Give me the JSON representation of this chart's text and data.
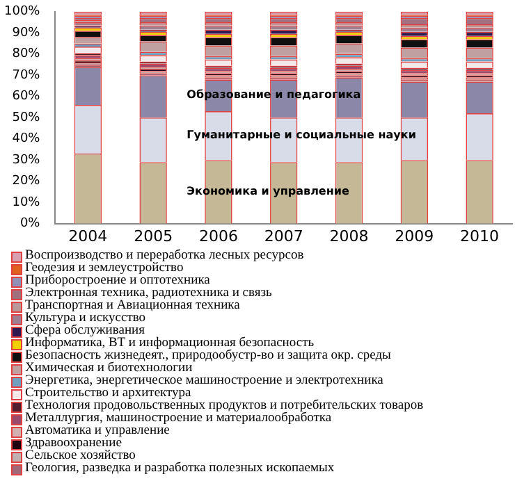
{
  "chart_data": {
    "type": "bar",
    "stacked": true,
    "categories": [
      "2004",
      "2005",
      "2006",
      "2007",
      "2008",
      "2009",
      "2010"
    ],
    "ylim": [
      0,
      100
    ],
    "yticks": [
      {
        "value": 0,
        "label": "0%"
      },
      {
        "value": 10,
        "label": "10%"
      },
      {
        "value": 20,
        "label": "20%"
      },
      {
        "value": 30,
        "label": "30%"
      },
      {
        "value": 40,
        "label": "40%"
      },
      {
        "value": 50,
        "label": "50%"
      },
      {
        "value": 60,
        "label": "60%"
      },
      {
        "value": 70,
        "label": "70%"
      },
      {
        "value": 80,
        "label": "80%"
      },
      {
        "value": 90,
        "label": "90%"
      },
      {
        "value": 100,
        "label": "100%"
      }
    ],
    "grid": false,
    "legend": "bottom",
    "annotations": [
      "Экономика и управление",
      "Гуманитарные и социальные науки",
      "Образование и педагогика"
    ],
    "series": [
      {
        "color": "#c4b896",
        "values": [
          33,
          29,
          30,
          29,
          29,
          30,
          30
        ]
      },
      {
        "color": "#d8dce8",
        "values": [
          23,
          21,
          23,
          21,
          21,
          20,
          22
        ]
      },
      {
        "color": "#8a87a8",
        "values": [
          18,
          20,
          15,
          18,
          19,
          17,
          15
        ]
      },
      {
        "name": "Геология, разведка и разработка полезных ископаемых",
        "color": "#a06878",
        "values": [
          1,
          1,
          1,
          1,
          1,
          1,
          1
        ]
      },
      {
        "name": "Сельское хозяйство",
        "color": "#c0b0b0",
        "values": [
          1,
          1,
          1,
          1,
          1,
          1,
          1
        ]
      },
      {
        "name": "Здравоохранение",
        "color": "#200010",
        "values": [
          1,
          1,
          1,
          1,
          1,
          1,
          1
        ]
      },
      {
        "name": "Автоматика и управление",
        "color": "#d0b0b0",
        "values": [
          1,
          1,
          1,
          1,
          1,
          1,
          1
        ]
      },
      {
        "name": "Металлургия, машиностроение и материалообработка",
        "color": "#9a4a6a",
        "values": [
          1.5,
          1.5,
          1.5,
          1.5,
          1.5,
          1.5,
          1.5
        ]
      },
      {
        "name": "Технология продовольственных продуктов и потребительских товаров",
        "color": "#502030",
        "values": [
          1,
          1,
          1,
          1,
          1,
          1,
          1
        ]
      },
      {
        "name": "Строительство и архитектура",
        "color": "#f2eaea",
        "values": [
          3,
          3,
          3,
          3,
          3,
          3,
          3
        ]
      },
      {
        "name": "Энергетика, энергетическое машиностроение и электротехника",
        "color": "#70a0c0",
        "values": [
          1.5,
          1.5,
          1.5,
          1.5,
          1.5,
          1.5,
          1.5
        ]
      },
      {
        "name": "Химическая и биотехнологии",
        "color": "#c0a0a0",
        "values": [
          3,
          5,
          5,
          5,
          5,
          5,
          5
        ]
      },
      {
        "name": "Безопасность жизнедеят., природообустр-во и защита окр. среды",
        "color": "#101010",
        "values": [
          3,
          3,
          4,
          4,
          4,
          4,
          4
        ]
      },
      {
        "name": "Информатика, ВТ и информационная безопасность",
        "color": "#f0d000",
        "values": [
          1.5,
          1.5,
          1.5,
          1.5,
          1.5,
          1.5,
          1.5
        ]
      },
      {
        "name": "Сфера обслуживания",
        "color": "#301850",
        "values": [
          1,
          1,
          2,
          2,
          1,
          2,
          2
        ]
      },
      {
        "name": "Культура  и искусство",
        "color": "#a08090",
        "values": [
          1.5,
          2,
          2,
          2,
          2,
          2,
          2
        ]
      },
      {
        "name": "Транспортная и Авиационная техника",
        "color": "#b89898",
        "values": [
          1,
          1.5,
          1.5,
          1.5,
          1.5,
          1.5,
          1.5
        ]
      },
      {
        "name": "Электронная техника, радиотехника и связь",
        "color": "#a07080",
        "values": [
          1,
          2,
          2,
          2,
          2,
          3,
          3
        ]
      },
      {
        "name": "Приборостроение и оптотехника",
        "color": "#9090b8",
        "values": [
          1,
          1,
          1,
          1,
          1,
          1,
          1
        ]
      },
      {
        "name": "Геодезия и землеустройство",
        "color": "#e06020",
        "values": [
          0.5,
          0.5,
          0.5,
          0.5,
          0.5,
          0.5,
          0.5
        ]
      },
      {
        "name": "Воспроизводство и переработка лесных ресурсов",
        "color": "#d8a0b0",
        "values": [
          1.5,
          1.5,
          1.5,
          1.5,
          1.5,
          1.5,
          1.5
        ]
      }
    ]
  }
}
